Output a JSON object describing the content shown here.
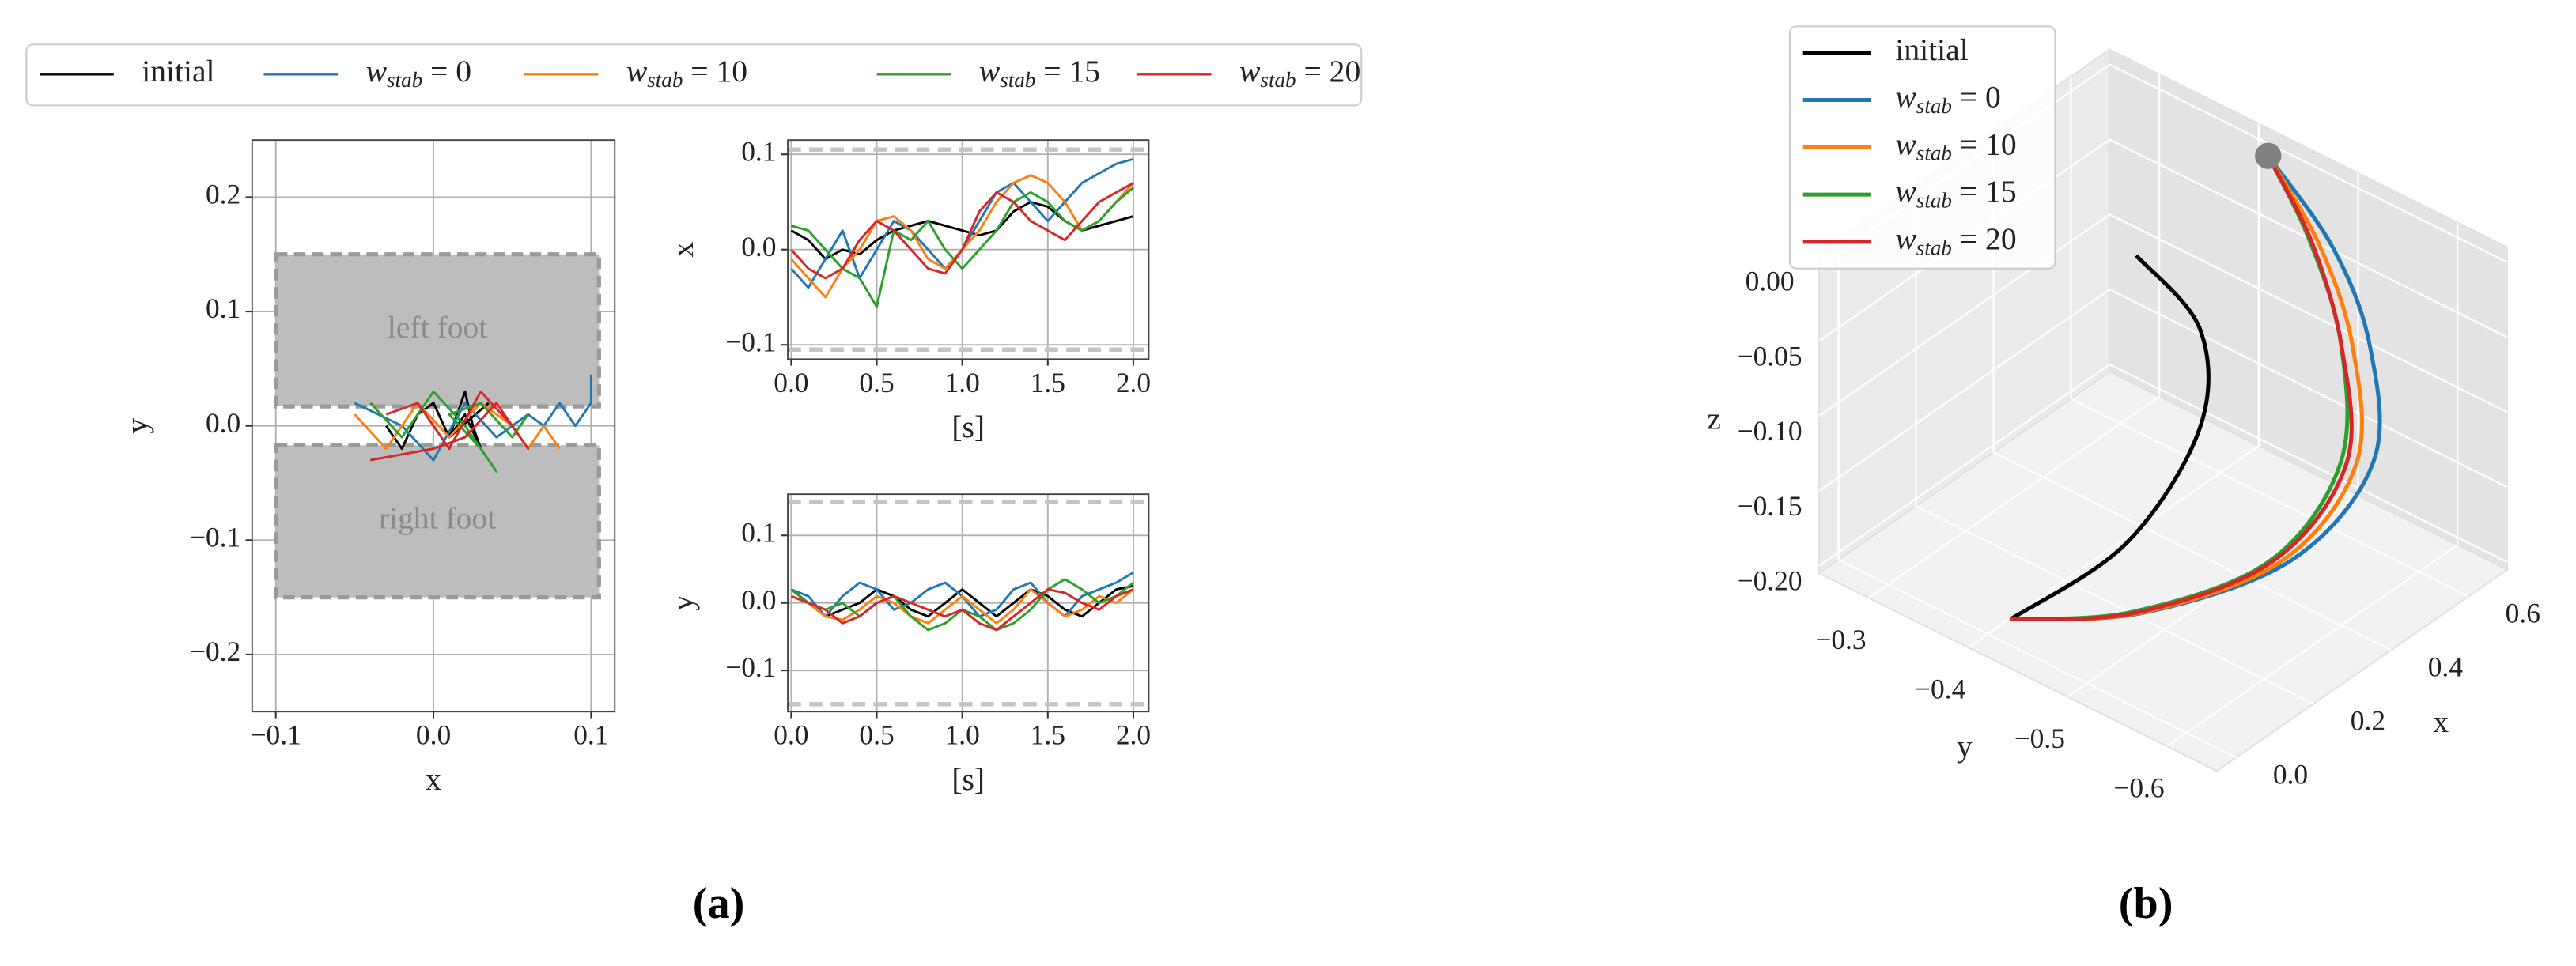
{
  "chart_data": [
    {
      "type": "line_xy",
      "xlabel": "x",
      "ylabel": "y",
      "grid": true,
      "legend": "top",
      "xlim": [
        -0.115,
        0.115
      ],
      "ylim": [
        -0.25,
        0.25
      ],
      "xticks": [
        {
          "value": -0.1,
          "label": "−0.1"
        },
        {
          "value": 0,
          "label": "0.0"
        },
        0.1
      ],
      "yticks": [
        {
          "value": -0.2,
          "label": "−0.2"
        },
        {
          "value": -0.1,
          "label": "−0.1"
        },
        {
          "value": 0,
          "label": "0.0"
        },
        0.1,
        0.2
      ],
      "regions": [
        {
          "label": "left foot",
          "x": [
            -0.1,
            0.105
          ],
          "y": [
            0.017,
            0.15
          ]
        },
        {
          "label": "right foot",
          "x": [
            -0.1,
            0.105
          ],
          "y": [
            -0.15,
            -0.017
          ]
        }
      ],
      "series": [
        {
          "name": "initial",
          "color": "#000000",
          "x": [
            -0.03,
            -0.02,
            -0.01,
            0.0,
            0.01,
            0.02,
            0.025,
            0.03,
            0.02,
            0.01,
            0.035
          ],
          "y": [
            0.0,
            -0.02,
            0.01,
            0.02,
            -0.01,
            0.03,
            0.0,
            -0.02,
            0.01,
            -0.01,
            0.02
          ]
        },
        {
          "name": "w_stab = 0",
          "color": "#1f77b4",
          "x": [
            -0.05,
            -0.02,
            0.0,
            0.02,
            0.04,
            0.06,
            0.07,
            0.08,
            0.09,
            0.1,
            0.1
          ],
          "y": [
            0.02,
            0.0,
            -0.03,
            0.02,
            -0.01,
            0.01,
            0.0,
            0.02,
            0.0,
            0.02,
            0.045
          ]
        },
        {
          "name": "w_stab = 10",
          "color": "#ff7f0e",
          "x": [
            -0.05,
            -0.03,
            -0.01,
            0.01,
            0.03,
            0.05,
            0.06,
            0.07,
            0.08
          ],
          "y": [
            0.01,
            -0.02,
            0.02,
            -0.01,
            0.02,
            0.0,
            -0.02,
            0.0,
            -0.02
          ]
        },
        {
          "name": "w_stab = 15",
          "color": "#2ca02c",
          "x": [
            -0.04,
            -0.02,
            0.0,
            0.02,
            0.04,
            0.03,
            0.01,
            0.03,
            0.05,
            0.06
          ],
          "y": [
            0.02,
            -0.01,
            0.03,
            0.0,
            -0.04,
            -0.02,
            0.01,
            0.02,
            -0.01,
            0.01
          ]
        },
        {
          "name": "w_stab = 20",
          "color": "#d62728",
          "x": [
            -0.03,
            -0.01,
            0.01,
            0.03,
            0.05,
            0.06,
            0.04,
            0.02,
            0.0,
            -0.04
          ],
          "y": [
            0.01,
            0.02,
            -0.02,
            0.03,
            0.0,
            -0.02,
            0.02,
            -0.01,
            -0.02,
            -0.03
          ]
        }
      ]
    },
    {
      "type": "line",
      "xlabel": "[s]",
      "ylabel": "x",
      "grid": true,
      "xlim": [
        -0.02,
        2.09
      ],
      "ylim": [
        -0.115,
        0.115
      ],
      "xticks": [
        {
          "value": 0,
          "label": "0.0"
        },
        0.5,
        {
          "value": 1,
          "label": "1.0"
        },
        1.5,
        {
          "value": 2,
          "label": "2.0"
        }
      ],
      "yticks": [
        {
          "value": -0.1,
          "label": "−0.1"
        },
        {
          "value": 0,
          "label": "0.0"
        },
        0.1
      ],
      "bounds": [
        -0.105,
        0.105
      ],
      "x": [
        0,
        0.1,
        0.2,
        0.3,
        0.4,
        0.5,
        0.6,
        0.7,
        0.8,
        0.9,
        1.0,
        1.1,
        1.2,
        1.3,
        1.4,
        1.5,
        1.6,
        1.7,
        1.8,
        1.9,
        2.0
      ],
      "series": [
        {
          "color": "#000000",
          "values": [
            0.02,
            0.01,
            -0.01,
            0.0,
            -0.005,
            0.01,
            0.02,
            0.025,
            0.03,
            0.025,
            0.02,
            0.015,
            0.02,
            0.04,
            0.05,
            0.045,
            0.03,
            0.02,
            0.025,
            0.03,
            0.035
          ]
        },
        {
          "color": "#1f77b4",
          "values": [
            -0.02,
            -0.04,
            -0.01,
            0.02,
            -0.03,
            0.0,
            0.03,
            0.02,
            0.0,
            -0.02,
            0.0,
            0.03,
            0.06,
            0.07,
            0.05,
            0.03,
            0.05,
            0.07,
            0.08,
            0.09,
            0.095
          ]
        },
        {
          "color": "#ff7f0e",
          "values": [
            -0.01,
            -0.03,
            -0.05,
            -0.02,
            0.0,
            0.03,
            0.035,
            0.02,
            -0.01,
            -0.02,
            0.0,
            0.02,
            0.05,
            0.07,
            0.078,
            0.07,
            0.05,
            0.02,
            0.03,
            0.05,
            0.07
          ]
        },
        {
          "color": "#2ca02c",
          "values": [
            0.025,
            0.02,
            0.0,
            -0.02,
            -0.03,
            -0.06,
            0.02,
            0.01,
            0.03,
            0.0,
            -0.02,
            0.0,
            0.02,
            0.05,
            0.06,
            0.05,
            0.03,
            0.02,
            0.03,
            0.05,
            0.065
          ]
        },
        {
          "color": "#d62728",
          "values": [
            0.0,
            -0.02,
            -0.03,
            -0.02,
            0.01,
            0.03,
            0.02,
            0.0,
            -0.02,
            -0.025,
            0.0,
            0.04,
            0.06,
            0.05,
            0.03,
            0.02,
            0.01,
            0.03,
            0.05,
            0.06,
            0.07
          ]
        }
      ]
    },
    {
      "type": "line",
      "xlabel": "[s]",
      "ylabel": "y",
      "grid": true,
      "xlim": [
        -0.02,
        2.09
      ],
      "ylim": [
        -0.161,
        0.161
      ],
      "xticks": [
        {
          "value": 0,
          "label": "0.0"
        },
        0.5,
        {
          "value": 1,
          "label": "1.0"
        },
        1.5,
        {
          "value": 2,
          "label": "2.0"
        }
      ],
      "yticks": [
        {
          "value": -0.1,
          "label": "−0.1"
        },
        {
          "value": 0,
          "label": "0.0"
        },
        0.1
      ],
      "bounds": [
        -0.15,
        0.15
      ],
      "x": [
        0,
        0.1,
        0.2,
        0.3,
        0.4,
        0.5,
        0.6,
        0.7,
        0.8,
        0.9,
        1.0,
        1.1,
        1.2,
        1.3,
        1.4,
        1.5,
        1.6,
        1.7,
        1.8,
        1.9,
        2.0
      ],
      "series": [
        {
          "color": "#000000",
          "values": [
            0.02,
            0.0,
            -0.02,
            -0.01,
            0.0,
            0.02,
            0.01,
            -0.01,
            -0.02,
            0.0,
            0.02,
            0.0,
            -0.02,
            0.0,
            0.02,
            0.01,
            -0.01,
            -0.02,
            0.0,
            0.02,
            0.025
          ]
        },
        {
          "color": "#1f77b4",
          "values": [
            0.02,
            0.01,
            -0.02,
            0.01,
            0.03,
            0.02,
            -0.01,
            0.0,
            0.02,
            0.03,
            0.01,
            -0.02,
            -0.01,
            0.02,
            0.03,
            0.0,
            -0.02,
            0.01,
            0.02,
            0.03,
            0.045
          ]
        },
        {
          "color": "#ff7f0e",
          "values": [
            0.01,
            0.0,
            -0.02,
            -0.025,
            -0.01,
            0.01,
            0.0,
            -0.02,
            -0.03,
            -0.01,
            0.01,
            -0.01,
            -0.03,
            -0.01,
            0.02,
            0.0,
            -0.02,
            -0.01,
            0.01,
            0.0,
            0.02
          ]
        },
        {
          "color": "#2ca02c",
          "values": [
            0.02,
            0.0,
            -0.01,
            0.0,
            -0.02,
            0.0,
            0.01,
            -0.02,
            -0.04,
            -0.03,
            -0.01,
            -0.02,
            -0.04,
            -0.03,
            -0.01,
            0.02,
            0.035,
            0.02,
            0.0,
            0.01,
            0.03
          ]
        },
        {
          "color": "#d62728",
          "values": [
            0.01,
            0.0,
            -0.01,
            -0.03,
            -0.02,
            0.0,
            0.01,
            0.0,
            -0.01,
            -0.02,
            -0.01,
            -0.03,
            -0.04,
            -0.02,
            0.0,
            0.02,
            0.015,
            0.0,
            -0.01,
            0.01,
            0.02
          ]
        }
      ]
    },
    {
      "type": "line3d",
      "xlabel": "x",
      "ylabel": "y",
      "zlabel": "z",
      "grid": true,
      "legend": "upper left",
      "xlim": [
        -0.05,
        0.7
      ],
      "ylim": [
        -0.65,
        -0.25
      ],
      "zlim": [
        -0.205,
        0.01
      ],
      "xticks": [
        {
          "value": 0,
          "label": "0.0"
        },
        0.2,
        0.4,
        0.6
      ],
      "yticks": [
        {
          "value": -0.6,
          "label": "−0.6"
        },
        {
          "value": -0.5,
          "label": "−0.5"
        },
        {
          "value": -0.4,
          "label": "−0.4"
        },
        {
          "value": -0.3,
          "label": "−0.3"
        }
      ],
      "zticks": [
        {
          "value": -0.2,
          "label": "−0.20"
        },
        {
          "value": -0.15,
          "label": "−0.15"
        },
        {
          "value": -0.1,
          "label": "−0.10"
        },
        {
          "value": -0.05,
          "label": "−0.05"
        },
        {
          "value": 0,
          "label": "0.00"
        }
      ],
      "marker": {
        "x": 0.673,
        "y": -0.42,
        "z": 0.0,
        "color": "#808080"
      },
      "series": [
        {
          "name": "initial",
          "color": "#000000",
          "x": [
            0.009,
            0.232,
            0.399,
            0.451,
            0.412
          ],
          "y": [
            -0.42,
            -0.449,
            -0.458,
            -0.438,
            -0.389
          ],
          "z": [
            -0.19,
            -0.17,
            -0.12,
            -0.07,
            -0.03
          ]
        },
        {
          "name": "w_stab = 0",
          "color": "#1f77b4",
          "x": [
            0.008,
            0.164,
            0.374,
            0.514,
            0.566,
            0.609,
            0.673
          ],
          "y": [
            -0.42,
            -0.492,
            -0.56,
            -0.588,
            -0.564,
            -0.51,
            -0.42
          ],
          "z": [
            -0.19,
            -0.19,
            -0.17,
            -0.12,
            -0.06,
            -0.02,
            0.0
          ]
        },
        {
          "name": "w_stab = 10",
          "color": "#ff7f0e",
          "x": [
            0.008,
            0.16,
            0.36,
            0.49,
            0.545,
            0.6,
            0.673
          ],
          "y": [
            -0.42,
            -0.49,
            -0.555,
            -0.58,
            -0.555,
            -0.5,
            -0.42
          ],
          "z": [
            -0.19,
            -0.19,
            -0.17,
            -0.12,
            -0.06,
            -0.02,
            0.0
          ]
        },
        {
          "name": "w_stab = 15",
          "color": "#2ca02c",
          "x": [
            0.008,
            0.155,
            0.345,
            0.475,
            0.54,
            0.6,
            0.673
          ],
          "y": [
            -0.42,
            -0.485,
            -0.548,
            -0.57,
            -0.545,
            -0.49,
            -0.42
          ],
          "z": [
            -0.19,
            -0.19,
            -0.17,
            -0.12,
            -0.06,
            -0.02,
            0.0
          ]
        },
        {
          "name": "w_stab = 20",
          "color": "#d62728",
          "x": [
            0.008,
            0.158,
            0.352,
            0.48,
            0.53,
            0.595,
            0.673
          ],
          "y": [
            -0.42,
            -0.488,
            -0.55,
            -0.574,
            -0.55,
            -0.495,
            -0.42
          ],
          "z": [
            -0.19,
            -0.19,
            -0.17,
            -0.12,
            -0.06,
            -0.02,
            0.0
          ]
        }
      ]
    }
  ],
  "captions": [
    "(a)",
    "(b)"
  ]
}
